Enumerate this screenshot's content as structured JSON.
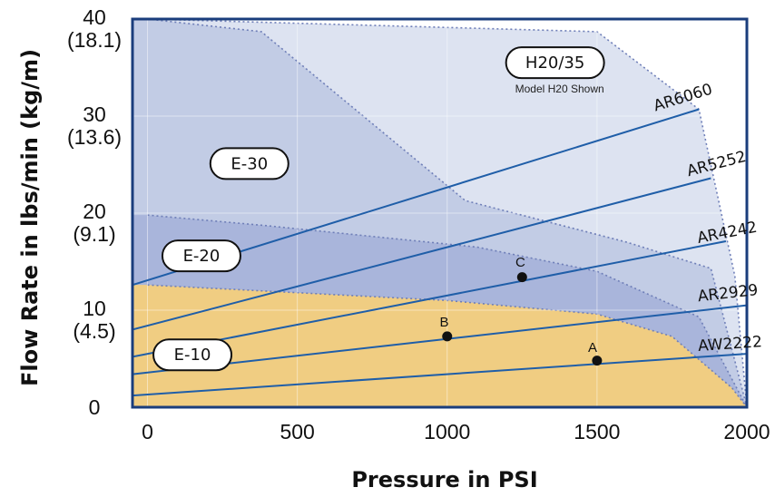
{
  "chart_data": {
    "type": "area",
    "xlabel": "Pressure in PSI",
    "ylabel": "Flow Rate in lbs/min (kg/m)",
    "xlim": [
      -50,
      2000
    ],
    "ylim": [
      0,
      40
    ],
    "grid": true,
    "x_ticks": [
      {
        "value": 0,
        "label": "0"
      },
      {
        "value": 500,
        "label": "500"
      },
      {
        "value": 1000,
        "label": "1000"
      },
      {
        "value": 1500,
        "label": "1500"
      },
      {
        "value": 2000,
        "label": "2000"
      }
    ],
    "y_ticks": [
      {
        "value": 0,
        "label": "0",
        "sub": ""
      },
      {
        "value": 10,
        "label": "10",
        "sub": "(4.5)"
      },
      {
        "value": 20,
        "label": "20",
        "sub": "(9.1)"
      },
      {
        "value": 30,
        "label": "30",
        "sub": "(13.6)"
      },
      {
        "value": 40,
        "label": "40",
        "sub": "(18.1)"
      }
    ],
    "regions": [
      {
        "name": "H20/35",
        "note": "Model H20 Shown",
        "color": "#dde3f1",
        "label_at": [
          1360,
          35.5
        ],
        "boundary": [
          [
            -50,
            40
          ],
          [
            0,
            40
          ],
          [
            1500,
            38.7
          ],
          [
            1840,
            30.7
          ],
          [
            1960,
            13.5
          ],
          [
            2000,
            0
          ]
        ]
      },
      {
        "name": "E-30",
        "color": "#c2cce5",
        "label_at": [
          340,
          25.1
        ],
        "boundary": [
          [
            -50,
            40
          ],
          [
            0,
            40
          ],
          [
            380,
            38.7
          ],
          [
            1060,
            21.3
          ],
          [
            1600,
            17
          ],
          [
            1880,
            14.3
          ],
          [
            2000,
            0
          ]
        ]
      },
      {
        "name": "E-20",
        "color": "#a9b5db",
        "label_at": [
          180,
          15.6
        ],
        "boundary": [
          [
            -50,
            19.8
          ],
          [
            0,
            19.8
          ],
          [
            400,
            18.7
          ],
          [
            1100,
            16.5
          ],
          [
            1500,
            14
          ],
          [
            1840,
            9.3
          ],
          [
            2000,
            0
          ]
        ]
      },
      {
        "name": "E-10",
        "color": "#f0cd82",
        "label_at": [
          150,
          5.4
        ],
        "boundary": [
          [
            -50,
            12.6
          ],
          [
            0,
            12.6
          ],
          [
            500,
            11.8
          ],
          [
            1000,
            11
          ],
          [
            1500,
            9.6
          ],
          [
            1750,
            7.3
          ],
          [
            1950,
            2
          ],
          [
            2000,
            0
          ]
        ]
      }
    ],
    "series": [
      {
        "name": "AR6060",
        "x": [
          -50,
          1840
        ],
        "y": [
          12.6,
          30.7
        ],
        "label_at": [
          1695,
          30.5
        ]
      },
      {
        "name": "AR5252",
        "x": [
          -50,
          1880
        ],
        "y": [
          8.0,
          23.6
        ],
        "label_at": [
          1805,
          23.8
        ]
      },
      {
        "name": "AR4242",
        "x": [
          -50,
          1930
        ],
        "y": [
          5.2,
          17.1
        ],
        "label_at": [
          1838,
          16.9
        ]
      },
      {
        "name": "AR2929",
        "x": [
          -50,
          2000
        ],
        "y": [
          3.4,
          10.5
        ],
        "label_at": [
          1838,
          10.9
        ]
      },
      {
        "name": "AW2222",
        "x": [
          -50,
          2000
        ],
        "y": [
          1.2,
          5.5
        ],
        "label_at": [
          1838,
          5.8
        ]
      }
    ],
    "series_color": "#1f5ea8",
    "points": [
      {
        "label": "A",
        "x": 1500,
        "y": 4.8,
        "label_at": [
          1470,
          5.7
        ]
      },
      {
        "label": "B",
        "x": 1000,
        "y": 7.3,
        "label_at": [
          975,
          8.3
        ]
      },
      {
        "label": "C",
        "x": 1250,
        "y": 13.4,
        "label_at": [
          1228,
          14.5
        ]
      }
    ]
  }
}
